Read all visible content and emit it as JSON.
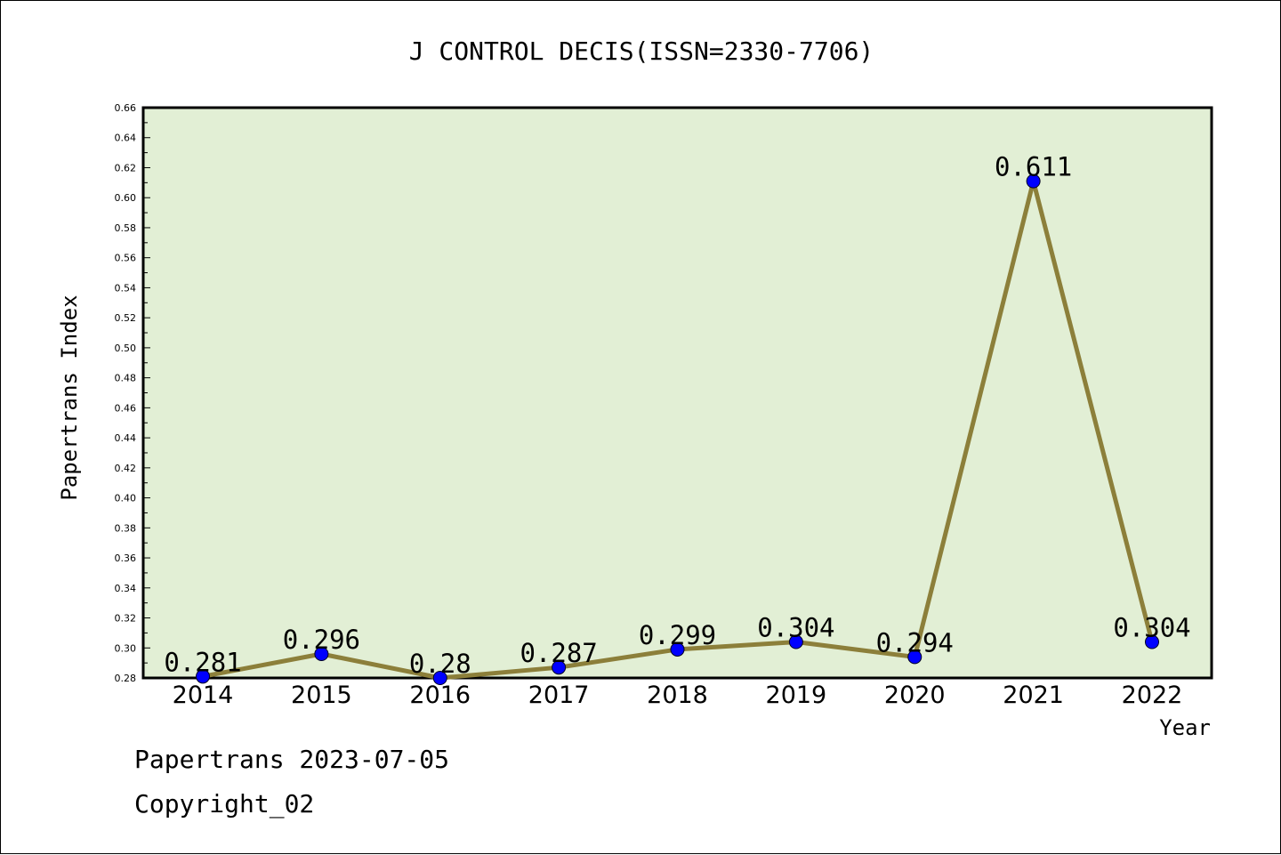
{
  "footer": {
    "date_text": "Papertrans 2023-07-05",
    "copyright_text": "Copyright_02"
  },
  "colors": {
    "plot_background": "#e2efd5",
    "line": "#8c7f3a",
    "marker": "#0000ff",
    "axis": "#000000"
  },
  "chart_data": {
    "type": "line",
    "title": "J CONTROL DECIS(ISSN=2330-7706)",
    "xlabel": "Year",
    "ylabel": "Papertrans Index",
    "categories": [
      "2014",
      "2015",
      "2016",
      "2017",
      "2018",
      "2019",
      "2020",
      "2021",
      "2022"
    ],
    "series": [
      {
        "values": [
          0.281,
          0.296,
          0.28,
          0.287,
          0.299,
          0.304,
          0.294,
          0.611,
          0.304
        ],
        "labels": [
          "0.281",
          "0.296",
          "0.28",
          "0.287",
          "0.299",
          "0.304",
          "0.294",
          "0.611",
          "0.304"
        ]
      }
    ],
    "ylim": [
      0.28,
      0.66
    ],
    "yticks": [
      "0.28",
      "0.30",
      "0.32",
      "0.34",
      "0.36",
      "0.38",
      "0.40",
      "0.42",
      "0.44",
      "0.46",
      "0.48",
      "0.50",
      "0.52",
      "0.54",
      "0.56",
      "0.58",
      "0.60",
      "0.62",
      "0.64",
      "0.66"
    ],
    "grid": false,
    "legend": "none"
  }
}
